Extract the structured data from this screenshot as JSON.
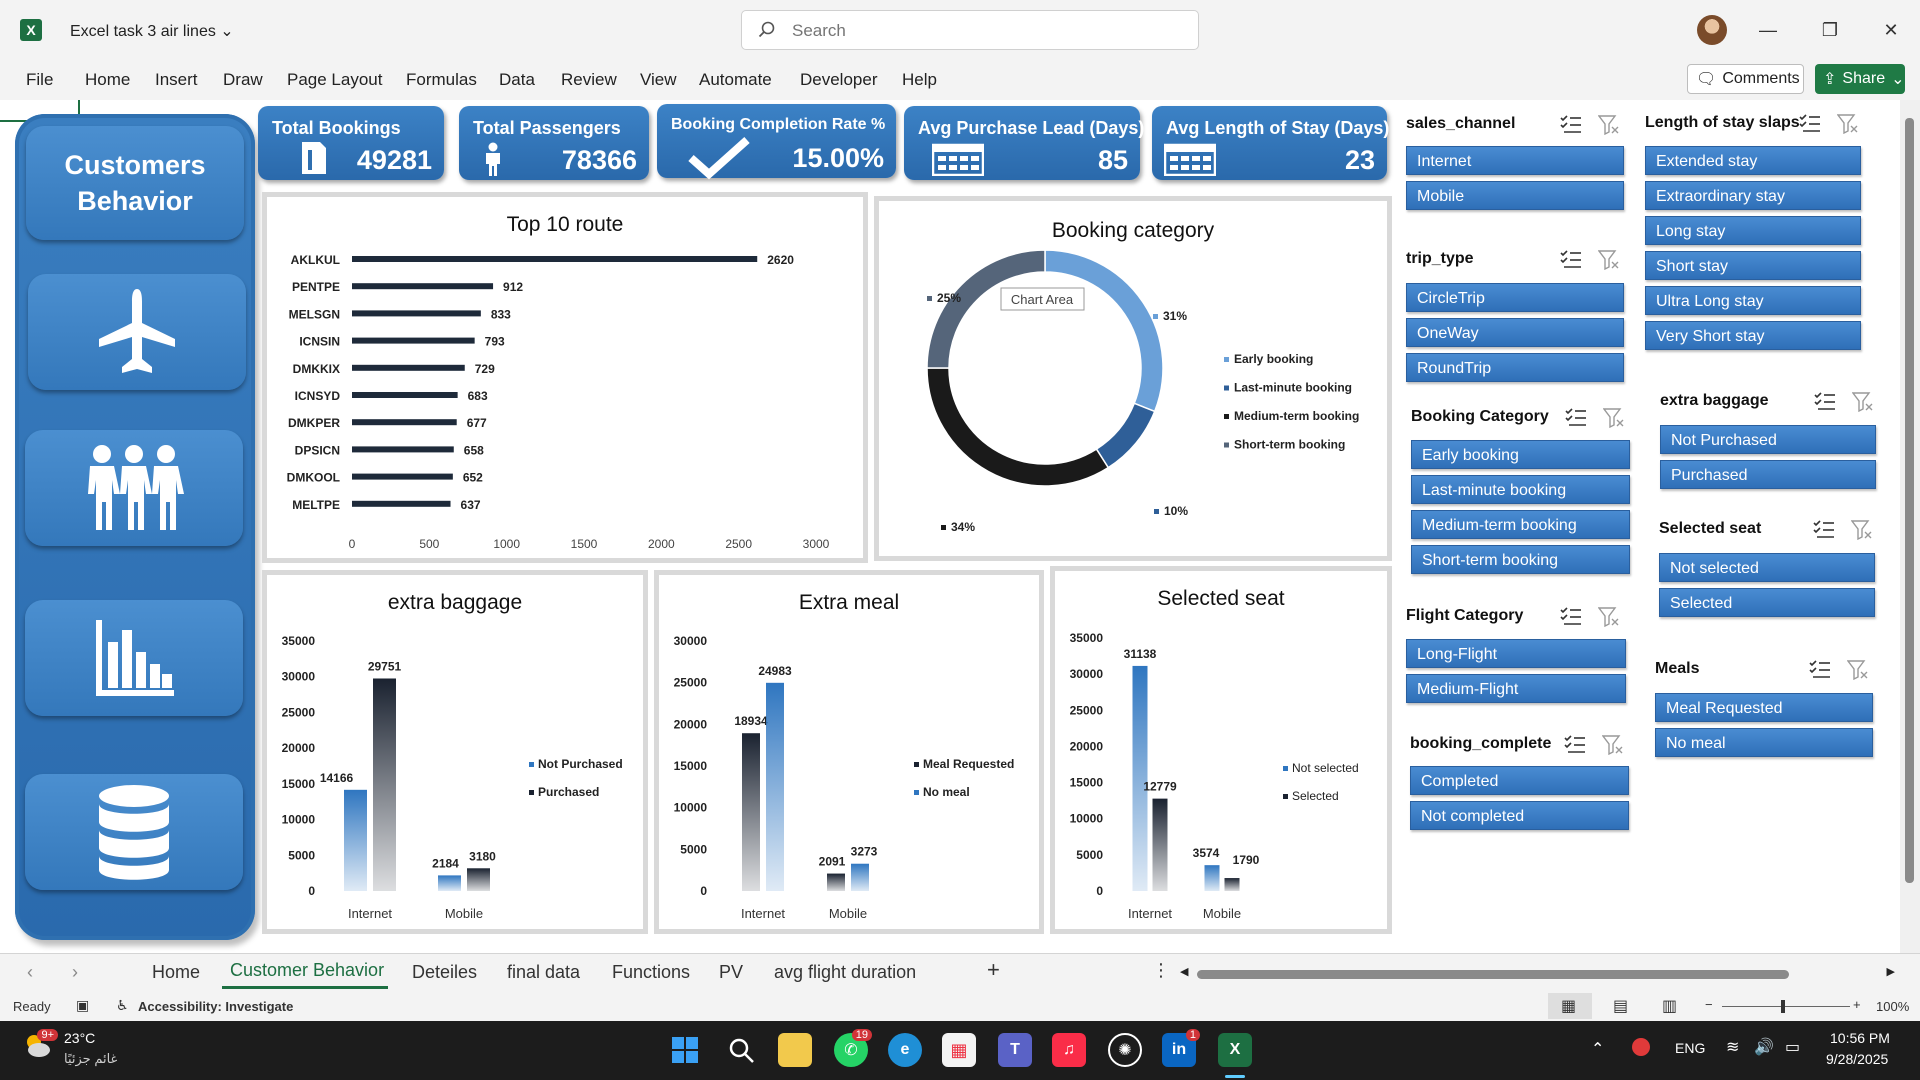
{
  "window": {
    "title": "Excel task 3 air lines",
    "search_placeholder": "Search"
  },
  "menu": [
    "File",
    "Home",
    "Insert",
    "Draw",
    "Page Layout",
    "Formulas",
    "Data",
    "Review",
    "View",
    "Automate",
    "Developer",
    "Help"
  ],
  "actions": {
    "comments": "Comments",
    "share": "Share"
  },
  "nav": {
    "title_line1": "Customers",
    "title_line2": "Behavior",
    "icons": [
      "airplane-icon",
      "people-icon",
      "bar-chart-icon",
      "database-icon"
    ]
  },
  "kpis": [
    {
      "label": "Total Bookings",
      "value": "49281",
      "icon": "document-icon"
    },
    {
      "label": "Total Passengers",
      "value": "78366",
      "icon": "person-icon"
    },
    {
      "label": "Booking Completion Rate %",
      "value": "15.00%",
      "icon": "checkmark-icon"
    },
    {
      "label": "Avg Purchase Lead (Days)",
      "value": "85",
      "icon": "calendar-icon"
    },
    {
      "label": "Avg Length of Stay (Days)",
      "value": "23",
      "icon": "calendar-icon"
    }
  ],
  "chart_data": [
    {
      "type": "bar",
      "orientation": "horizontal",
      "title": "Top 10 route",
      "categories": [
        "AKLKUL",
        "PENTPE",
        "MELSGN",
        "ICNSIN",
        "DMKKIX",
        "ICNSYD",
        "DMKPER",
        "DPSICN",
        "DMKOOL",
        "MELTPE"
      ],
      "values": [
        2620,
        912,
        833,
        793,
        729,
        683,
        677,
        658,
        652,
        637
      ],
      "xlim": [
        0,
        3000
      ],
      "xticks": [
        0,
        500,
        1000,
        1500,
        2000,
        2500,
        3000
      ],
      "color": "#1e2a3a"
    },
    {
      "type": "pie",
      "donut": true,
      "title": "Booking category",
      "series": [
        {
          "name": "Early booking",
          "value": 31,
          "label": "31%",
          "color": "#6aa0d8"
        },
        {
          "name": "Last-minute booking",
          "value": 10,
          "label": "10%",
          "color": "#2f5f98"
        },
        {
          "name": "Medium-term booking",
          "value": 34,
          "label": "34%",
          "color": "#1a1a1a"
        },
        {
          "name": "Short-term booking",
          "value": 25,
          "label": "25%",
          "color": "#55657a"
        }
      ],
      "tooltip": "Chart Area"
    },
    {
      "type": "bar",
      "title": "extra baggage",
      "categories": [
        "Internet",
        "Mobile"
      ],
      "series": [
        {
          "name": "Not Purchased",
          "values": [
            14166,
            2184
          ],
          "color": "#2f76c0"
        },
        {
          "name": "Purchased",
          "values": [
            29751,
            3180
          ],
          "color": "#1a2230"
        }
      ],
      "ylim": [
        0,
        35000
      ],
      "yticks": [
        0,
        5000,
        10000,
        15000,
        20000,
        25000,
        30000,
        35000
      ]
    },
    {
      "type": "bar",
      "title": "Extra meal",
      "categories": [
        "Internet",
        "Mobile"
      ],
      "series": [
        {
          "name": "Meal Requested",
          "values": [
            18934,
            2091
          ],
          "color": "#1a2230"
        },
        {
          "name": "No meal",
          "values": [
            24983,
            3273
          ],
          "color": "#2f76c0"
        }
      ],
      "ylim": [
        0,
        30000
      ],
      "yticks": [
        0,
        5000,
        10000,
        15000,
        20000,
        25000,
        30000
      ]
    },
    {
      "type": "bar",
      "title": "Selected seat",
      "categories": [
        "Internet",
        "Mobile"
      ],
      "series": [
        {
          "name": "Not selected",
          "values": [
            31138,
            3574
          ],
          "color": "#2f76c0"
        },
        {
          "name": "Selected",
          "values": [
            12779,
            1790
          ],
          "color": "#1a2230"
        }
      ],
      "ylim": [
        0,
        35000
      ],
      "yticks": [
        0,
        5000,
        10000,
        15000,
        20000,
        25000,
        30000,
        35000
      ]
    }
  ],
  "slicers": [
    {
      "title": "sales_channel",
      "items": [
        "Internet",
        "Mobile"
      ]
    },
    {
      "title": "trip_type",
      "items": [
        "CircleTrip",
        "OneWay",
        "RoundTrip"
      ]
    },
    {
      "title": "Booking Category",
      "items": [
        "Early booking",
        "Last-minute booking",
        "Medium-term booking",
        "Short-term booking"
      ]
    },
    {
      "title": "Flight Category",
      "items": [
        "Long-Flight",
        "Medium-Flight"
      ]
    },
    {
      "title": "booking_complete",
      "items": [
        "Completed",
        "Not completed"
      ]
    },
    {
      "title": "Length of stay slaps",
      "items": [
        "Extended stay",
        "Extraordinary stay",
        "Long stay",
        "Short stay",
        "Ultra Long stay",
        "Very Short stay"
      ]
    },
    {
      "title": "extra baggage",
      "items": [
        "Not Purchased",
        "Purchased"
      ]
    },
    {
      "title": "Selected seat",
      "items": [
        "Not selected",
        "Selected"
      ]
    },
    {
      "title": "Meals",
      "items": [
        "Meal Requested",
        "No meal"
      ]
    }
  ],
  "sheet_tabs": [
    "Home",
    "Customer Behavior",
    "Deteiles",
    "final data",
    "Functions",
    "PV",
    "avg flight duration"
  ],
  "active_tab": "Customer Behavior",
  "status": {
    "ready": "Ready",
    "accessibility": "Accessibility: Investigate",
    "zoom": "100%"
  },
  "taskbar": {
    "weather_temp": "23°C",
    "weather_desc": "غائم جزئيًا",
    "weather_badge": "9+",
    "language": "ENG",
    "time": "10:56 PM",
    "date": "9/28/2025",
    "whatsapp_badge": "19",
    "linkedin_badge": "1"
  },
  "colors": {
    "accent_blue": "#2f76c0",
    "excel_green": "#1d6f42",
    "dark_bar": "#1a2230"
  }
}
